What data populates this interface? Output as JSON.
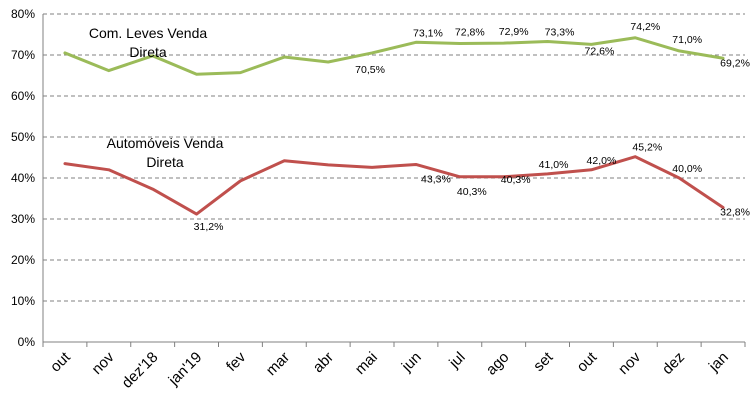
{
  "chart_data": {
    "type": "line",
    "categories": [
      "out",
      "nov",
      "dez'18",
      "jan'19",
      "fev",
      "mar",
      "abr",
      "mai",
      "jun",
      "jul",
      "ago",
      "set",
      "out",
      "nov",
      "dez",
      "jan"
    ],
    "ylim": [
      0,
      80
    ],
    "yticks": [
      "0%",
      "10%",
      "20%",
      "30%",
      "40%",
      "50%",
      "60%",
      "70%",
      "80%"
    ],
    "grid": true,
    "series": [
      {
        "name": "Com. Leves Venda Direta",
        "name_lines": [
          "Com. Leves Venda",
          "Direta"
        ],
        "color": "#9bbb59",
        "values": [
          70.5,
          66.2,
          69.8,
          65.3,
          65.7,
          69.5,
          68.3,
          70.5,
          73.1,
          72.8,
          72.9,
          73.3,
          72.6,
          74.2,
          71.0,
          69.2
        ],
        "labels": [
          "",
          "",
          "",
          "",
          "",
          "",
          "",
          "70,5%",
          "73,1%",
          "72,8%",
          "72,9%",
          "73,3%",
          "72,6%",
          "74,2%",
          "71,0%",
          "69,2%"
        ]
      },
      {
        "name": "Automóveis Venda Direta",
        "name_lines": [
          "Automóveis Venda",
          "Direta"
        ],
        "color": "#c0504d",
        "values": [
          43.5,
          42.0,
          37.3,
          31.2,
          39.3,
          44.2,
          43.2,
          42.6,
          43.3,
          40.3,
          40.3,
          41.0,
          42.0,
          45.2,
          40.0,
          32.8
        ],
        "labels": [
          "",
          "",
          "",
          "31,2%",
          "",
          "",
          "",
          "",
          "43,3%",
          "40,3%",
          "40,3%",
          "41,0%",
          "42,0%",
          "45,2%",
          "40,0%",
          "32,8%"
        ]
      }
    ]
  }
}
